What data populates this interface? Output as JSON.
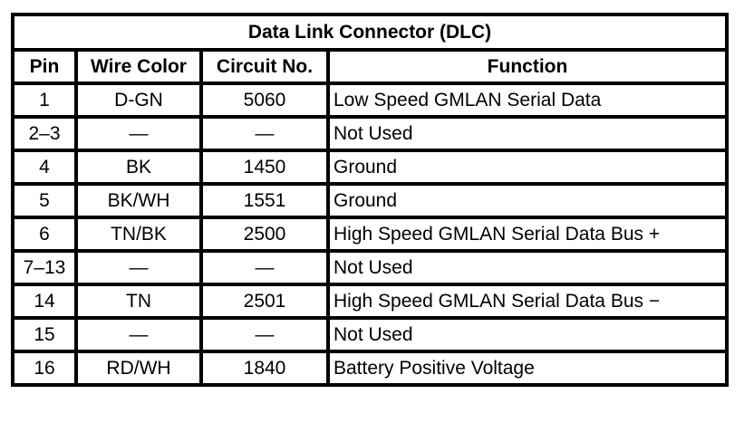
{
  "title": "Data Link Connector (DLC)",
  "headers": {
    "pin": "Pin",
    "wire_color": "Wire Color",
    "circuit": "Circuit No.",
    "function": "Function"
  },
  "rows": [
    {
      "pin": "1",
      "wire_color": "D-GN",
      "circuit": "5060",
      "function": "Low Speed GMLAN Serial Data"
    },
    {
      "pin": "2–3",
      "wire_color": "—",
      "circuit": "—",
      "function": "Not Used"
    },
    {
      "pin": "4",
      "wire_color": "BK",
      "circuit": "1450",
      "function": "Ground"
    },
    {
      "pin": "5",
      "wire_color": "BK/WH",
      "circuit": "1551",
      "function": "Ground"
    },
    {
      "pin": "6",
      "wire_color": "TN/BK",
      "circuit": "2500",
      "function": "High Speed GMLAN Serial Data Bus +"
    },
    {
      "pin": "7–13",
      "wire_color": "—",
      "circuit": "—",
      "function": "Not Used"
    },
    {
      "pin": "14",
      "wire_color": "TN",
      "circuit": "2501",
      "function": "High Speed GMLAN Serial Data Bus −"
    },
    {
      "pin": "15",
      "wire_color": "—",
      "circuit": "—",
      "function": "Not Used"
    },
    {
      "pin": "16",
      "wire_color": "RD/WH",
      "circuit": "1840",
      "function": "Battery Positive Voltage"
    }
  ]
}
